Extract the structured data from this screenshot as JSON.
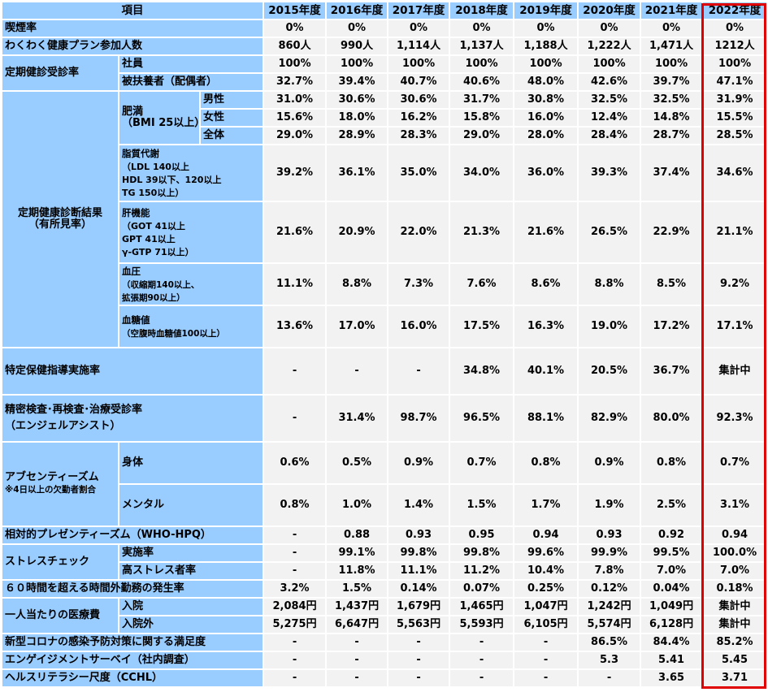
{
  "header": {
    "item_label": "項目",
    "years": [
      "2015年度",
      "2016年度",
      "2017年度",
      "2018年度",
      "2019年度",
      "2020年度",
      "2021年度",
      "2022年度"
    ]
  },
  "rows": {
    "smoking": {
      "label": "喫煙率",
      "values": [
        "0%",
        "0%",
        "0%",
        "0%",
        "0%",
        "0%",
        "0%",
        "0%"
      ]
    },
    "wakuwaku": {
      "label": "わくわく健康プラン参加人数",
      "values": [
        "860人",
        "990人",
        "1,114人",
        "1,137人",
        "1,188人",
        "1,222人",
        "1,471人",
        "1212人"
      ]
    },
    "checkup_rate": {
      "label": "定期健診受診率",
      "employee": {
        "label": "社員",
        "values": [
          "100%",
          "100%",
          "100%",
          "100%",
          "100%",
          "100%",
          "100%",
          "100%"
        ]
      },
      "dependent": {
        "label": "被扶養者（配偶者）",
        "values": [
          "32.7%",
          "39.4%",
          "40.7%",
          "40.6%",
          "48.0%",
          "42.6%",
          "39.7%",
          "47.1%"
        ]
      }
    },
    "checkup_results": {
      "label_line1": "定期健康診断結果",
      "label_line2": "（有所見率）",
      "obesity": {
        "label_line1": "肥満",
        "label_line2": "（BMI 25以上）",
        "male": {
          "label": "男性",
          "values": [
            "31.0%",
            "30.6%",
            "30.6%",
            "31.7%",
            "30.8%",
            "32.5%",
            "32.5%",
            "31.9%"
          ]
        },
        "female": {
          "label": "女性",
          "values": [
            "15.6%",
            "18.0%",
            "16.2%",
            "15.8%",
            "16.0%",
            "12.4%",
            "14.8%",
            "15.5%"
          ]
        },
        "total": {
          "label": "全体",
          "values": [
            "29.0%",
            "28.9%",
            "28.3%",
            "29.0%",
            "28.0%",
            "28.4%",
            "28.7%",
            "28.5%"
          ]
        }
      },
      "lipid": {
        "label": "脂質代謝",
        "sub1": "（LDL 140以上",
        "sub2": "HDL 39以下、120以上",
        "sub3": "TG 150以上）",
        "values": [
          "39.2%",
          "36.1%",
          "35.0%",
          "34.0%",
          "36.0%",
          "39.3%",
          "37.4%",
          "34.6%"
        ]
      },
      "liver": {
        "label": "肝機能",
        "sub1": "（GOT 41以上",
        "sub2": "GPT 41以上",
        "sub3": "γ-GTP 71以上）",
        "values": [
          "21.6%",
          "20.9%",
          "22.0%",
          "21.3%",
          "21.6%",
          "26.5%",
          "22.9%",
          "21.1%"
        ]
      },
      "blood_pressure": {
        "label": "血圧",
        "sub1": "（収縮期140以上、",
        "sub2": "拡張期90以上）",
        "values": [
          "11.1%",
          "8.8%",
          "7.3%",
          "7.6%",
          "8.6%",
          "8.8%",
          "8.5%",
          "9.2%"
        ]
      },
      "blood_sugar": {
        "label": "血糖値",
        "sub1": "（空腹時血糖値100以上）",
        "values": [
          "13.6%",
          "17.0%",
          "16.0%",
          "17.5%",
          "16.3%",
          "19.0%",
          "17.2%",
          "17.1%"
        ]
      }
    },
    "health_guidance": {
      "label": "特定保健指導実施率",
      "values": [
        "-",
        "-",
        "-",
        "34.8%",
        "40.1%",
        "20.5%",
        "36.7%",
        "集計中"
      ]
    },
    "detailed_exam": {
      "label_line1": "精密検査･再検査･治療受診率",
      "label_line2": "（エンジェルアシスト）",
      "values": [
        "-",
        "31.4%",
        "98.7%",
        "96.5%",
        "88.1%",
        "82.9%",
        "80.0%",
        "92.3%"
      ]
    },
    "absenteeism": {
      "label": "アブセンティーズム",
      "note": "※4日以上の欠勤者割合",
      "physical": {
        "label": "身体",
        "values": [
          "0.6%",
          "0.5%",
          "0.9%",
          "0.7%",
          "0.8%",
          "0.9%",
          "0.8%",
          "0.7%"
        ]
      },
      "mental": {
        "label": "メンタル",
        "values": [
          "0.8%",
          "1.0%",
          "1.4%",
          "1.5%",
          "1.7%",
          "1.9%",
          "2.5%",
          "3.1%"
        ]
      }
    },
    "presenteeism": {
      "label": "相対的プレゼンティーズム（WHO-HPQ）",
      "values": [
        "-",
        "0.88",
        "0.93",
        "0.95",
        "0.94",
        "0.93",
        "0.92",
        "0.94"
      ]
    },
    "stress_check": {
      "label": "ストレスチェック",
      "rate": {
        "label": "実施率",
        "values": [
          "-",
          "99.1%",
          "99.8%",
          "99.8%",
          "99.6%",
          "99.9%",
          "99.5%",
          "100.0%"
        ]
      },
      "high_stress": {
        "label": "高ストレス者率",
        "values": [
          "-",
          "11.8%",
          "11.1%",
          "11.2%",
          "10.4%",
          "7.8%",
          "7.0%",
          "7.0%"
        ]
      }
    },
    "overtime": {
      "label": "６０時間を超える時間外勤務の発生率",
      "values": [
        "3.2%",
        "1.5%",
        "0.14%",
        "0.07%",
        "0.25%",
        "0.12%",
        "0.04%",
        "0.18%"
      ]
    },
    "medical_cost": {
      "label": "一人当たりの医療費",
      "inpatient": {
        "label": "入院",
        "values": [
          "2,084円",
          "1,437円",
          "1,679円",
          "1,465円",
          "1,047円",
          "1,242円",
          "1,049円",
          "集計中"
        ]
      },
      "outpatient": {
        "label": "入院外",
        "values": [
          "5,275円",
          "6,647円",
          "5,563円",
          "5,593円",
          "6,105円",
          "5,574円",
          "6,128円",
          "集計中"
        ]
      }
    },
    "covid": {
      "label": "新型コロナの感染予防対策に関する満足度",
      "values": [
        "-",
        "-",
        "-",
        "-",
        "-",
        "86.5%",
        "84.4%",
        "85.2%"
      ]
    },
    "engagement": {
      "label": "エンゲイジメントサーベイ（社内調査）",
      "values": [
        "-",
        "-",
        "-",
        "-",
        "-",
        "5.3",
        "5.41",
        "5.45"
      ]
    },
    "ccHL": {
      "label": "ヘルスリテラシー尺度（CCHL）",
      "values": [
        "-",
        "-",
        "-",
        "-",
        "-",
        "-",
        "3.65",
        "3.71"
      ]
    }
  },
  "colors": {
    "label_bg": "#99ccff",
    "value_bg": "#f2f2f2",
    "highlight": "#e00000"
  }
}
